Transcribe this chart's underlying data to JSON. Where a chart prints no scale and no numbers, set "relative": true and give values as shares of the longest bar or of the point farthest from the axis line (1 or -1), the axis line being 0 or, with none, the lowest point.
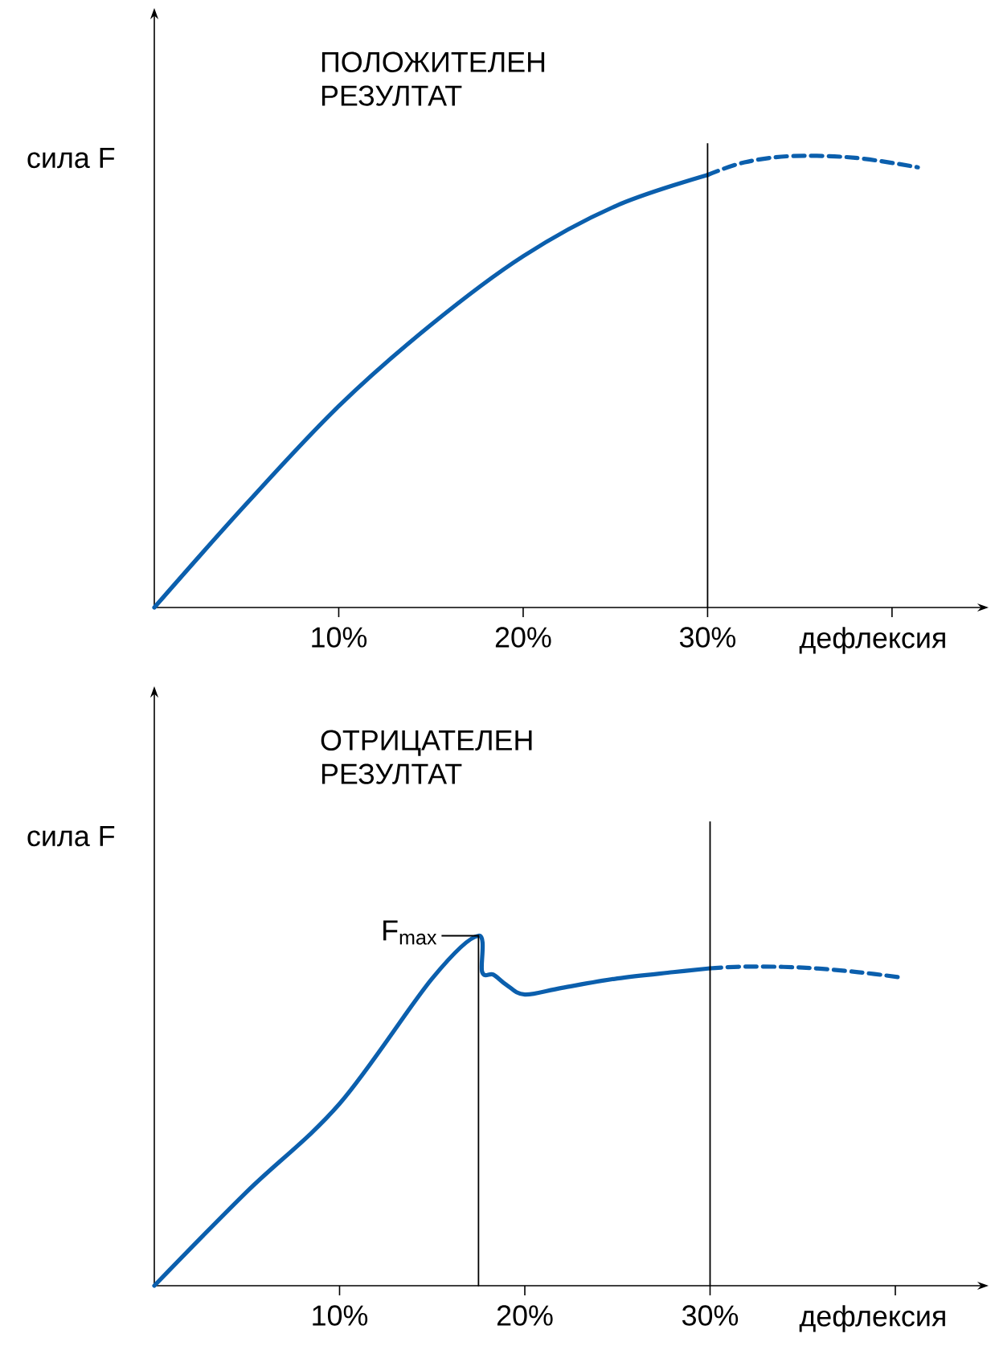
{
  "chart_data": [
    {
      "type": "line",
      "title": "ПОЛОЖИТЕЛЕН РЕЗУЛТАТ",
      "xlabel": "дефлексия",
      "ylabel": "сила F",
      "relative": true,
      "xlim": [
        0,
        44.8
      ],
      "xticks": [
        {
          "value": 10,
          "label": "10%"
        },
        {
          "value": 20,
          "label": "20%"
        },
        {
          "value": 30,
          "label": "30%"
        },
        {
          "value": 40,
          "label": null
        }
      ],
      "series": [
        {
          "color": "#0b5fad",
          "line_style": "solid",
          "x": [
            0,
            5,
            10,
            15,
            20,
            25,
            30
          ],
          "values": [
            0,
            0.23,
            0.446,
            0.626,
            0.778,
            0.889,
            0.958
          ]
        },
        {
          "color": "#0b5fad",
          "line_style": "dashed",
          "x": [
            30,
            32,
            34.6,
            38,
            41.4
          ],
          "values": [
            0.958,
            0.986,
            1,
            0.996,
            0.975
          ]
        }
      ],
      "ref_lines": [
        {
          "axis": "x",
          "value": 30
        }
      ]
    },
    {
      "type": "line",
      "title": "ОТРИЦАТЕЛЕН РЕЗУЛТАТ",
      "xlabel": "дефлексия",
      "ylabel": "сила F",
      "relative": true,
      "xlim": [
        0,
        44.6
      ],
      "xticks": [
        {
          "value": 10,
          "label": "10%"
        },
        {
          "value": 20,
          "label": "20%"
        },
        {
          "value": 30,
          "label": "30%"
        },
        {
          "value": 40,
          "label": null
        }
      ],
      "series": [
        {
          "color": "#0b5fad",
          "line_style": "solid",
          "x": [
            0,
            5,
            10,
            15,
            17.5,
            17.7,
            18.3,
            19,
            20,
            22,
            25,
            28,
            30
          ],
          "values": [
            0,
            0.269,
            0.52,
            0.878,
            1,
            0.896,
            0.889,
            0.86,
            0.832,
            0.851,
            0.878,
            0.896,
            0.907
          ]
        },
        {
          "color": "#0b5fad",
          "line_style": "dashed",
          "x": [
            30,
            32,
            35,
            38,
            40.4
          ],
          "values": [
            0.907,
            0.912,
            0.909,
            0.896,
            0.88
          ]
        },
        {
          "type": "line",
          "color": "#000000",
          "line_style": "solid",
          "x": [
            17.5,
            17.5
          ],
          "values": [
            0,
            1
          ]
        }
      ],
      "ref_lines": [
        {
          "axis": "x",
          "value": 30
        }
      ],
      "annotations": [
        {
          "text": "F$_{max}$",
          "x": 17.5,
          "y": 1
        }
      ]
    }
  ]
}
